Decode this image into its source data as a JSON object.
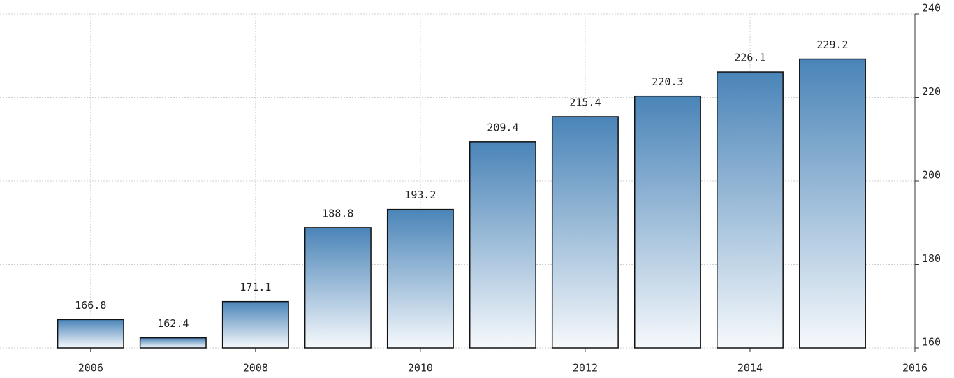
{
  "chart_data": {
    "type": "bar",
    "x": [
      2006,
      2007,
      2008,
      2009,
      2010,
      2011,
      2012,
      2013,
      2014,
      2015
    ],
    "values": [
      166.8,
      162.4,
      171.1,
      188.8,
      193.2,
      209.4,
      215.4,
      220.3,
      226.1,
      229.2
    ],
    "color": "#4a84b8",
    "xlim": [
      2004.9,
      2016
    ],
    "xticks": [
      2006,
      2008,
      2010,
      2012,
      2014,
      2016
    ],
    "ylim": [
      160,
      240
    ],
    "yticks": [
      160,
      180,
      200,
      220,
      240
    ],
    "grid": true,
    "y_axis_side": "right"
  }
}
